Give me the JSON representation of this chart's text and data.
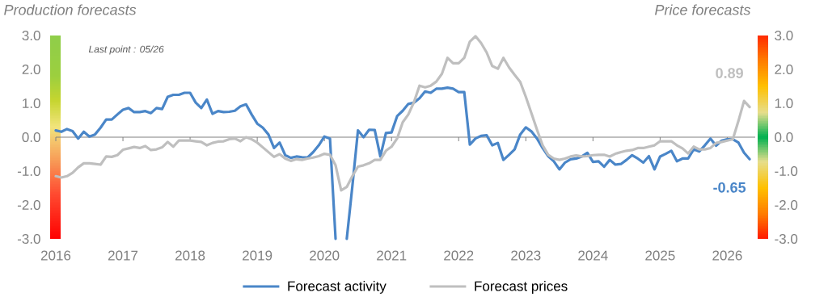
{
  "chart_data": {
    "type": "line",
    "ylabel": "Production forecasts",
    "y2label": "Price forecasts",
    "annotations": [
      "Last point : 05/26",
      {
        "text": "0.89",
        "x": "2026-05",
        "y": 0.89
      },
      {
        "text": "-0.65",
        "x": "2026-05",
        "y": -0.65
      }
    ],
    "x": [
      "2016-01",
      "2016-02",
      "2016-03",
      "2016-04",
      "2016-05",
      "2016-06",
      "2016-07",
      "2016-08",
      "2016-09",
      "2016-10",
      "2016-11",
      "2016-12",
      "2017-01",
      "2017-02",
      "2017-03",
      "2017-04",
      "2017-05",
      "2017-06",
      "2017-07",
      "2017-08",
      "2017-09",
      "2017-10",
      "2017-11",
      "2017-12",
      "2018-01",
      "2018-02",
      "2018-03",
      "2018-04",
      "2018-05",
      "2018-06",
      "2018-07",
      "2018-08",
      "2018-09",
      "2018-10",
      "2018-11",
      "2018-12",
      "2019-01",
      "2019-02",
      "2019-03",
      "2019-04",
      "2019-05",
      "2019-06",
      "2019-07",
      "2019-08",
      "2019-09",
      "2019-10",
      "2019-11",
      "2019-12",
      "2020-01",
      "2020-02",
      "2020-03",
      "2020-04",
      "2020-05",
      "2020-06",
      "2020-07",
      "2020-08",
      "2020-09",
      "2020-10",
      "2020-11",
      "2020-12",
      "2021-01",
      "2021-02",
      "2021-03",
      "2021-04",
      "2021-05",
      "2021-06",
      "2021-07",
      "2021-08",
      "2021-09",
      "2021-10",
      "2021-11",
      "2021-12",
      "2022-01",
      "2022-02",
      "2022-03",
      "2022-04",
      "2022-05",
      "2022-06",
      "2022-07",
      "2022-08",
      "2022-09",
      "2022-10",
      "2022-11",
      "2022-12",
      "2023-01",
      "2023-02",
      "2023-03",
      "2023-04",
      "2023-05",
      "2023-06",
      "2023-07",
      "2023-08",
      "2023-09",
      "2023-10",
      "2023-11",
      "2023-12",
      "2024-01",
      "2024-02",
      "2024-03",
      "2024-04",
      "2024-05",
      "2024-06",
      "2024-07",
      "2024-08",
      "2024-09",
      "2024-10",
      "2024-11",
      "2024-12",
      "2025-01",
      "2025-02",
      "2025-03",
      "2025-04",
      "2025-05",
      "2025-06",
      "2025-07",
      "2025-08",
      "2025-09",
      "2025-10",
      "2025-11",
      "2025-12",
      "2026-01",
      "2026-02",
      "2026-03",
      "2026-04",
      "2026-05"
    ],
    "series": [
      {
        "name": "Forecast activity",
        "color": "#4a86c8",
        "values": [
          0.2,
          0.16,
          0.24,
          0.18,
          -0.04,
          0.16,
          0.02,
          0.08,
          0.28,
          0.52,
          0.52,
          0.67,
          0.81,
          0.86,
          0.74,
          0.74,
          0.77,
          0.71,
          0.86,
          0.83,
          1.19,
          1.25,
          1.25,
          1.31,
          1.31,
          1.02,
          0.86,
          1.11,
          0.69,
          0.77,
          0.74,
          0.75,
          0.78,
          0.91,
          0.97,
          0.67,
          0.4,
          0.28,
          0.08,
          -0.32,
          -0.16,
          -0.53,
          -0.61,
          -0.57,
          -0.59,
          -0.6,
          -0.44,
          -0.24,
          0.02,
          -0.04,
          -3.0,
          null,
          -3.0,
          -1.45,
          0.2,
          0.0,
          0.22,
          0.21,
          -0.57,
          0.12,
          0.14,
          0.62,
          0.78,
          0.98,
          1.02,
          1.15,
          1.35,
          1.31,
          1.43,
          1.43,
          1.46,
          1.43,
          1.33,
          1.33,
          -0.22,
          -0.04,
          0.04,
          0.06,
          -0.24,
          -0.17,
          -0.67,
          -0.52,
          -0.36,
          0.08,
          0.29,
          0.17,
          -0.04,
          -0.32,
          -0.56,
          -0.71,
          -0.95,
          -0.75,
          -0.65,
          -0.63,
          -0.57,
          -0.46,
          -0.73,
          -0.71,
          -0.87,
          -0.67,
          -0.81,
          -0.79,
          -0.67,
          -0.53,
          -0.63,
          -0.75,
          -0.56,
          -0.95,
          -0.57,
          -0.49,
          -0.4,
          -0.71,
          -0.63,
          -0.63,
          -0.36,
          -0.42,
          -0.24,
          -0.04,
          -0.25,
          -0.1,
          -0.06,
          -0.06,
          -0.16,
          -0.46,
          -0.65
        ]
      },
      {
        "name": "Forecast prices",
        "color": "#bfbfbf",
        "axis": "y2",
        "values": [
          -1.15,
          -1.19,
          -1.15,
          -1.05,
          -0.89,
          -0.77,
          -0.77,
          -0.79,
          -0.81,
          -0.57,
          -0.58,
          -0.53,
          -0.37,
          -0.33,
          -0.29,
          -0.32,
          -0.26,
          -0.38,
          -0.36,
          -0.3,
          -0.14,
          -0.28,
          -0.1,
          -0.1,
          -0.1,
          -0.12,
          -0.14,
          -0.24,
          -0.17,
          -0.13,
          -0.12,
          -0.06,
          -0.04,
          -0.12,
          0.0,
          -0.06,
          -0.16,
          -0.3,
          -0.44,
          -0.58,
          -0.5,
          -0.63,
          -0.7,
          -0.65,
          -0.67,
          -0.63,
          -0.6,
          -0.56,
          -0.49,
          -0.52,
          -0.83,
          -1.57,
          -1.47,
          -1.15,
          -0.87,
          -0.83,
          -0.77,
          -0.67,
          -0.67,
          -0.4,
          -0.28,
          -0.04,
          0.44,
          0.67,
          1.03,
          1.52,
          1.47,
          1.52,
          1.64,
          1.87,
          2.34,
          2.18,
          2.18,
          2.34,
          2.82,
          2.98,
          2.78,
          2.5,
          2.1,
          2.02,
          2.34,
          2.06,
          1.84,
          1.63,
          1.19,
          0.71,
          0.22,
          -0.24,
          -0.52,
          -0.63,
          -0.67,
          -0.63,
          -0.57,
          -0.54,
          -0.57,
          -0.56,
          -0.53,
          -0.52,
          -0.52,
          -0.57,
          -0.49,
          -0.44,
          -0.4,
          -0.38,
          -0.32,
          -0.32,
          -0.28,
          -0.24,
          -0.12,
          -0.12,
          -0.12,
          -0.24,
          -0.33,
          -0.48,
          -0.28,
          -0.36,
          -0.36,
          -0.32,
          -0.17,
          -0.14,
          -0.1,
          -0.06,
          0.48,
          1.07,
          0.89
        ]
      }
    ],
    "xlim": [
      "2016-01",
      "2026-06"
    ],
    "xticks": [
      "2016",
      "2017",
      "2018",
      "2019",
      "2020",
      "2021",
      "2022",
      "2023",
      "2024",
      "2025",
      "2026"
    ],
    "ylim": [
      -3,
      3
    ],
    "yticks": [
      {
        "value": -3,
        "label": "-3.0"
      },
      {
        "value": -2,
        "label": "-2.0"
      },
      {
        "value": -1,
        "label": "-1.0"
      },
      {
        "value": 0,
        "label": "0.0"
      },
      {
        "value": 1,
        "label": "1.0"
      },
      {
        "value": 2,
        "label": "2.0"
      },
      {
        "value": 3,
        "label": "3.0"
      }
    ],
    "y2lim": [
      -3,
      3
    ],
    "y2ticks": [
      {
        "value": -3,
        "label": "-3.0"
      },
      {
        "value": -2,
        "label": "-2.0"
      },
      {
        "value": -1,
        "label": "-1.0"
      },
      {
        "value": 0,
        "label": "0.0"
      },
      {
        "value": 1,
        "label": "1.0"
      },
      {
        "value": 2,
        "label": "2.0"
      },
      {
        "value": 3,
        "label": "3.0"
      }
    ],
    "ref_lines": [
      {
        "axis": "y",
        "value": 0,
        "color": "#808080"
      }
    ],
    "legend": "bottom",
    "marker": "none",
    "line_style": "solid",
    "grid": false
  }
}
